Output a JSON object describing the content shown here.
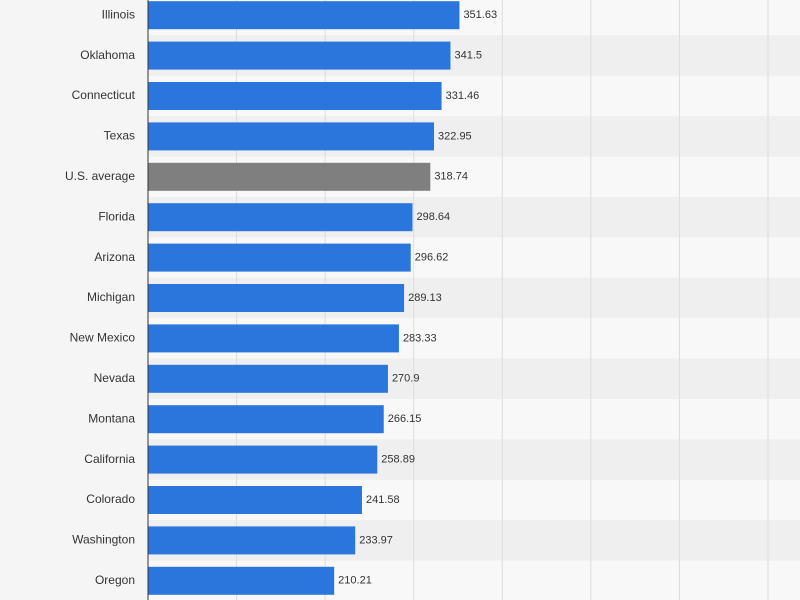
{
  "chart_data": {
    "type": "bar",
    "orientation": "horizontal",
    "categories": [
      "Illinois",
      "Oklahoma",
      "Connecticut",
      "Texas",
      "U.S. average",
      "Florida",
      "Arizona",
      "Michigan",
      "New Mexico",
      "Nevada",
      "Montana",
      "California",
      "Colorado",
      "Washington",
      "Oregon"
    ],
    "values": [
      351.63,
      341.5,
      331.46,
      322.95,
      318.74,
      298.64,
      296.62,
      289.13,
      283.33,
      270.9,
      266.15,
      258.89,
      241.58,
      233.97,
      210.21
    ],
    "value_labels": [
      "351.63",
      "341.5",
      "331.46",
      "322.95",
      "318.74",
      "298.64",
      "296.62",
      "289.13",
      "283.33",
      "270.9",
      "266.15",
      "258.89",
      "241.58",
      "233.97",
      "210.21"
    ],
    "highlight_category": "U.S. average",
    "xlim": [
      0,
      700
    ],
    "grid": true,
    "colors": {
      "bar": "#2a76dd",
      "highlight": "#7f7f7f",
      "band_alt": "#efefef",
      "band": "#f8f8f8",
      "grid": "#dcdcdc",
      "axis": "#333333",
      "text": "#333333"
    }
  }
}
